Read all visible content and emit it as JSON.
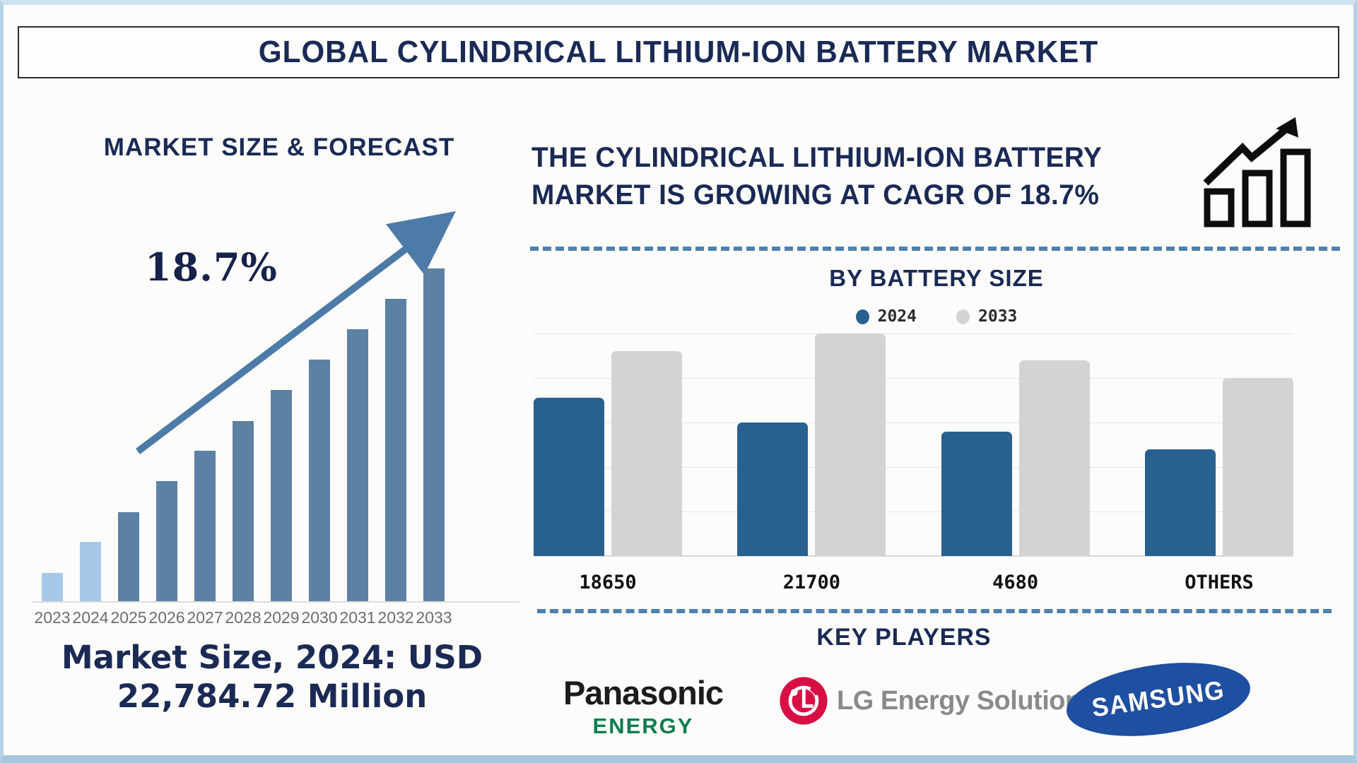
{
  "page": {
    "title": "GLOBAL CYLINDRICAL LITHIUM-ION BATTERY MARKET"
  },
  "colors": {
    "navy_text": "#1a2a56",
    "steel_arrow": "#4d7ba8",
    "forecast_bar": "#5d81a4",
    "forecast_bar_highlight": "#a7c9e9",
    "battery_bar_2024": "#28608f",
    "battery_bar_2033": "#d3d3d1",
    "dashed_divider": "#4e81ae",
    "panasonic_black": "#1c1c1c",
    "panasonic_green": "#0e7d52",
    "lg_red": "#d80f45",
    "lg_gray": "#8a8a8a",
    "samsung_blue": "#1e4fa0"
  },
  "left_panel": {
    "heading": "MARKET SIZE & FORECAST",
    "cagr_label": "18.7%",
    "caption_line1": "Market Size, 2024: USD",
    "caption_line2": "22,784.72 Million"
  },
  "right_panel": {
    "headline_line1": "THE CYLINDRICAL LITHIUM-ION BATTERY",
    "headline_line2": "MARKET IS GROWING AT CAGR OF 18.7%",
    "battery_section_title": "BY BATTERY SIZE",
    "key_players_title": "KEY PLAYERS",
    "players": {
      "panasonic_line1": "Panasonic",
      "panasonic_line2": "ENERGY",
      "lg": "LG Energy Solution",
      "samsung": "SAMSUNG"
    }
  },
  "chart_data": [
    {
      "type": "bar",
      "title": "MARKET SIZE & FORECAST",
      "categories": [
        "2023",
        "2024",
        "2025",
        "2026",
        "2027",
        "2028",
        "2029",
        "2030",
        "2031",
        "2032",
        "2033"
      ],
      "values": [
        8.5,
        17.8,
        26.7,
        36.1,
        45.2,
        54.1,
        63.5,
        72.6,
        81.7,
        90.9,
        100
      ],
      "value_note": "relative bar heights, max=100 (no y-axis shown); market size 2024 = USD 22,784.72 Million, CAGR 18.7%",
      "bar_color": "#5d81a4",
      "highlight_color": "#a7c9e9",
      "highlight_count": 2,
      "annotation": "18.7% growth arrow pointing up-right",
      "xlabel": "",
      "ylabel": "",
      "grid": false
    },
    {
      "type": "bar",
      "title": "BY BATTERY SIZE",
      "categories": [
        "18650",
        "21700",
        "4680",
        "OTHERS"
      ],
      "series": [
        {
          "name": "2024",
          "color": "#28608f",
          "values": [
            71,
            60,
            56,
            48
          ]
        },
        {
          "name": "2033",
          "color": "#d3d3d1",
          "values": [
            92,
            100,
            88,
            80
          ]
        }
      ],
      "value_note": "estimated from unlabeled gridlines, interval = 20, scale 0-100",
      "ylim": [
        0,
        100
      ],
      "grid": true,
      "legend_position": "top"
    }
  ]
}
